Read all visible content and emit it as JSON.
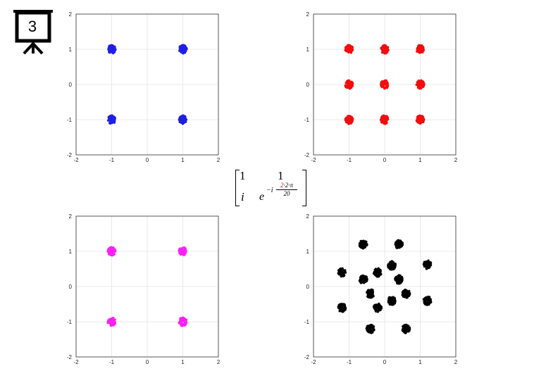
{
  "slide_number": "3",
  "matrix": {
    "r1c1": "1",
    "r1c2": "1",
    "r2c1": "i",
    "r2c2_base": "e",
    "exp_prefix": "−i",
    "frac_num_highlight": "2",
    "frac_num_rest": "·2·π",
    "frac_den": "20",
    "highlight_color": "#d11a1a"
  },
  "chart_data": [
    {
      "type": "scatter",
      "ticks": [
        -2,
        -1,
        0,
        1,
        2
      ],
      "xlim": [
        -2,
        2
      ],
      "ylim": [
        -2,
        2
      ],
      "grid": true,
      "color": "#1f1fe6",
      "clusters": [
        [
          -1,
          1
        ],
        [
          1,
          1
        ],
        [
          -1,
          -1
        ],
        [
          1,
          -1
        ]
      ]
    },
    {
      "type": "scatter",
      "ticks": [
        -2,
        -1,
        0,
        1,
        2
      ],
      "xlim": [
        -2,
        2
      ],
      "ylim": [
        -2,
        2
      ],
      "grid": true,
      "color": "#f20e0e",
      "clusters": [
        [
          -1,
          1
        ],
        [
          0,
          1
        ],
        [
          1,
          1
        ],
        [
          -1,
          0
        ],
        [
          0,
          0
        ],
        [
          1,
          0
        ],
        [
          -1,
          -1
        ],
        [
          0,
          -1
        ],
        [
          1,
          -1
        ]
      ]
    },
    {
      "type": "scatter",
      "ticks": [
        -2,
        -1,
        0,
        1,
        2
      ],
      "xlim": [
        -2,
        2
      ],
      "ylim": [
        -2,
        2
      ],
      "grid": true,
      "color": "#ff1ff5",
      "clusters": [
        [
          -1,
          1
        ],
        [
          1,
          1
        ],
        [
          -1,
          -1
        ],
        [
          1,
          -1
        ]
      ]
    },
    {
      "type": "scatter",
      "ticks": [
        -2,
        -1,
        0,
        1,
        2
      ],
      "xlim": [
        -2,
        2
      ],
      "ylim": [
        -2,
        2
      ],
      "grid": true,
      "color": "#000000",
      "clusters": [
        [
          -0.6,
          1.2
        ],
        [
          0.4,
          1.2
        ],
        [
          1.2,
          0.62
        ],
        [
          0.2,
          0.6
        ],
        [
          -1.2,
          0.4
        ],
        [
          -0.2,
          0.4
        ],
        [
          0.4,
          0.2
        ],
        [
          -0.6,
          0.2
        ],
        [
          -0.4,
          -0.2
        ],
        [
          0.6,
          -0.2
        ],
        [
          0.2,
          -0.4
        ],
        [
          1.2,
          -0.4
        ],
        [
          -1.2,
          -0.6
        ],
        [
          -0.2,
          -0.6
        ],
        [
          -0.4,
          -1.2
        ],
        [
          0.6,
          -1.2
        ]
      ]
    }
  ]
}
